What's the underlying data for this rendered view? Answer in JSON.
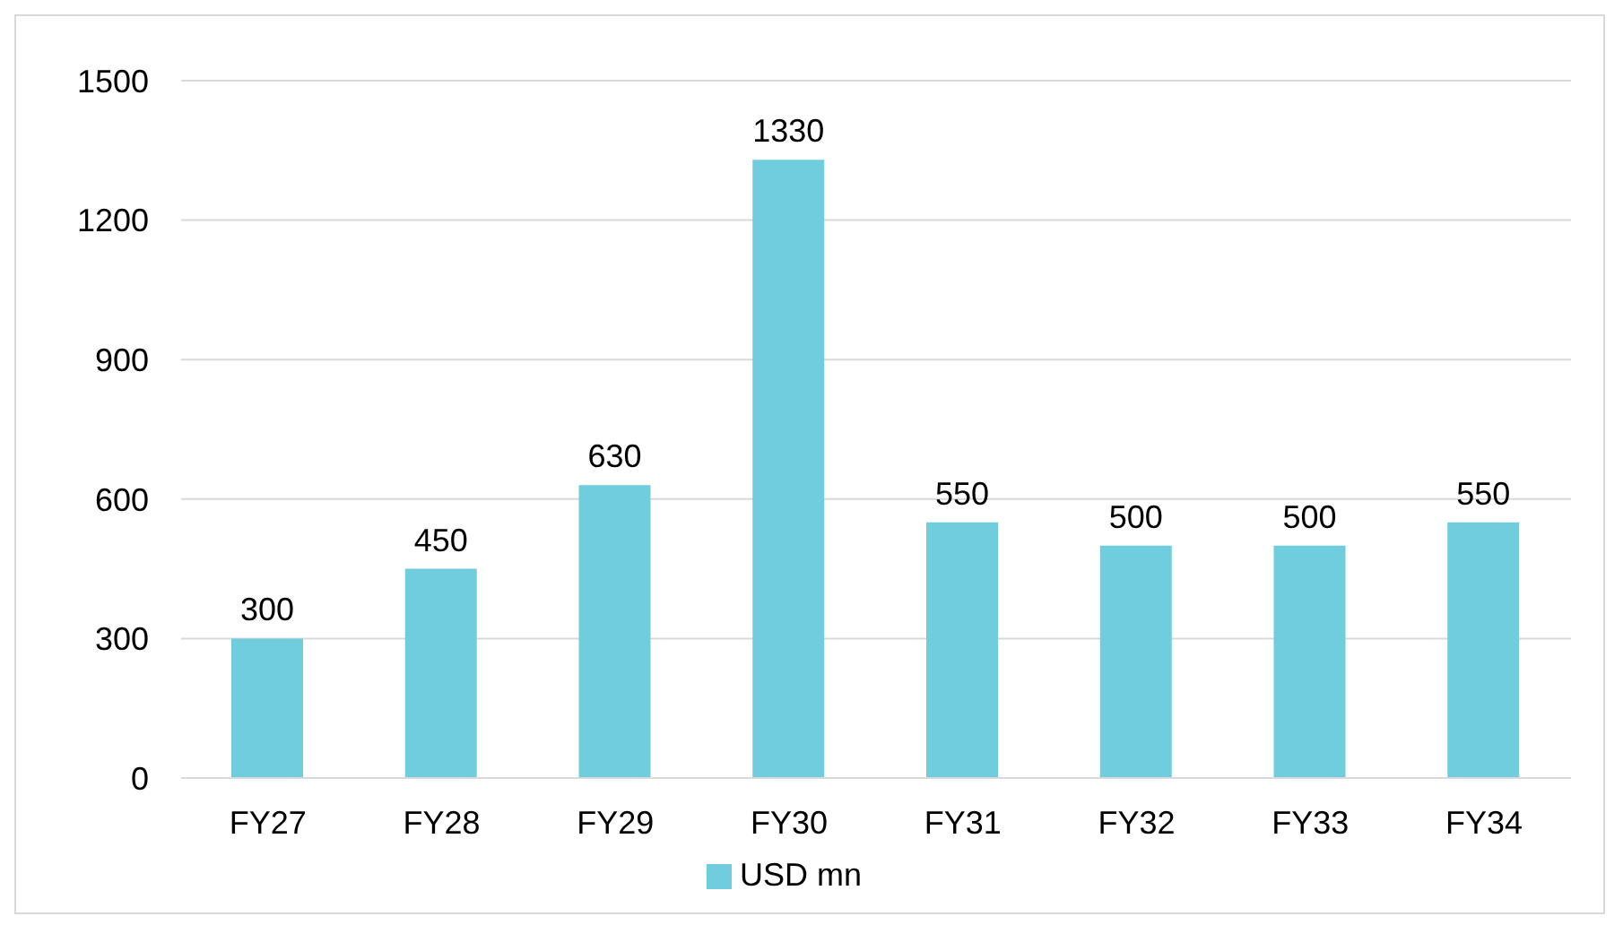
{
  "chart_data": {
    "type": "bar",
    "categories": [
      "FY27",
      "FY28",
      "FY29",
      "FY30",
      "FY31",
      "FY32",
      "FY33",
      "FY34"
    ],
    "series": [
      {
        "name": "USD mn",
        "color": "#70cddd",
        "values": [
          300,
          450,
          630,
          1330,
          550,
          500,
          500,
          550
        ]
      }
    ],
    "ylim": [
      0,
      1500
    ],
    "yticks": [
      0,
      300,
      600,
      900,
      1200,
      1500
    ],
    "grid": "y",
    "legend": "bottom",
    "data_labels": true
  }
}
